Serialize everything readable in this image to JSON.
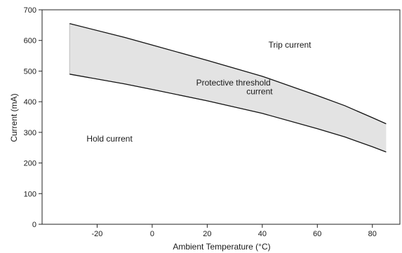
{
  "chart_data": {
    "type": "area",
    "xlabel": "Ambient Temperature (°C)",
    "ylabel": "Current (mA)",
    "xlim": [
      -40,
      90
    ],
    "ylim": [
      0,
      700
    ],
    "x_ticks": [
      -20,
      0,
      20,
      40,
      60,
      80
    ],
    "y_ticks": [
      0,
      100,
      200,
      300,
      400,
      500,
      600,
      700
    ],
    "x_tick_labels": [
      "-20",
      "0",
      "20",
      "40",
      "60",
      "80"
    ],
    "y_tick_labels": [
      "0",
      "100",
      "200",
      "300",
      "400",
      "500",
      "600",
      "700"
    ],
    "grid": false,
    "band_fill": "#e3e3e3",
    "line_color": "#111111",
    "series": [
      {
        "name": "Trip current",
        "x": [
          -30,
          -10,
          0,
          20,
          40,
          60,
          70,
          80,
          85
        ],
        "y": [
          655,
          610,
          585,
          535,
          483,
          420,
          387,
          348,
          328
        ]
      },
      {
        "name": "Hold current",
        "x": [
          -30,
          -10,
          0,
          20,
          40,
          60,
          70,
          80,
          85
        ],
        "y": [
          490,
          458,
          440,
          403,
          362,
          312,
          285,
          253,
          236
        ]
      }
    ],
    "annotations": [
      {
        "id": "trip",
        "text": "Trip current",
        "x": 50,
        "y": 577
      },
      {
        "id": "threshold-1",
        "text": "Protective threshold",
        "x": 29.5,
        "y": 453
      },
      {
        "id": "threshold-2",
        "text": "current",
        "x": 39,
        "y": 424
      },
      {
        "id": "hold",
        "text": "Hold current",
        "x": -15.5,
        "y": 270
      }
    ]
  }
}
